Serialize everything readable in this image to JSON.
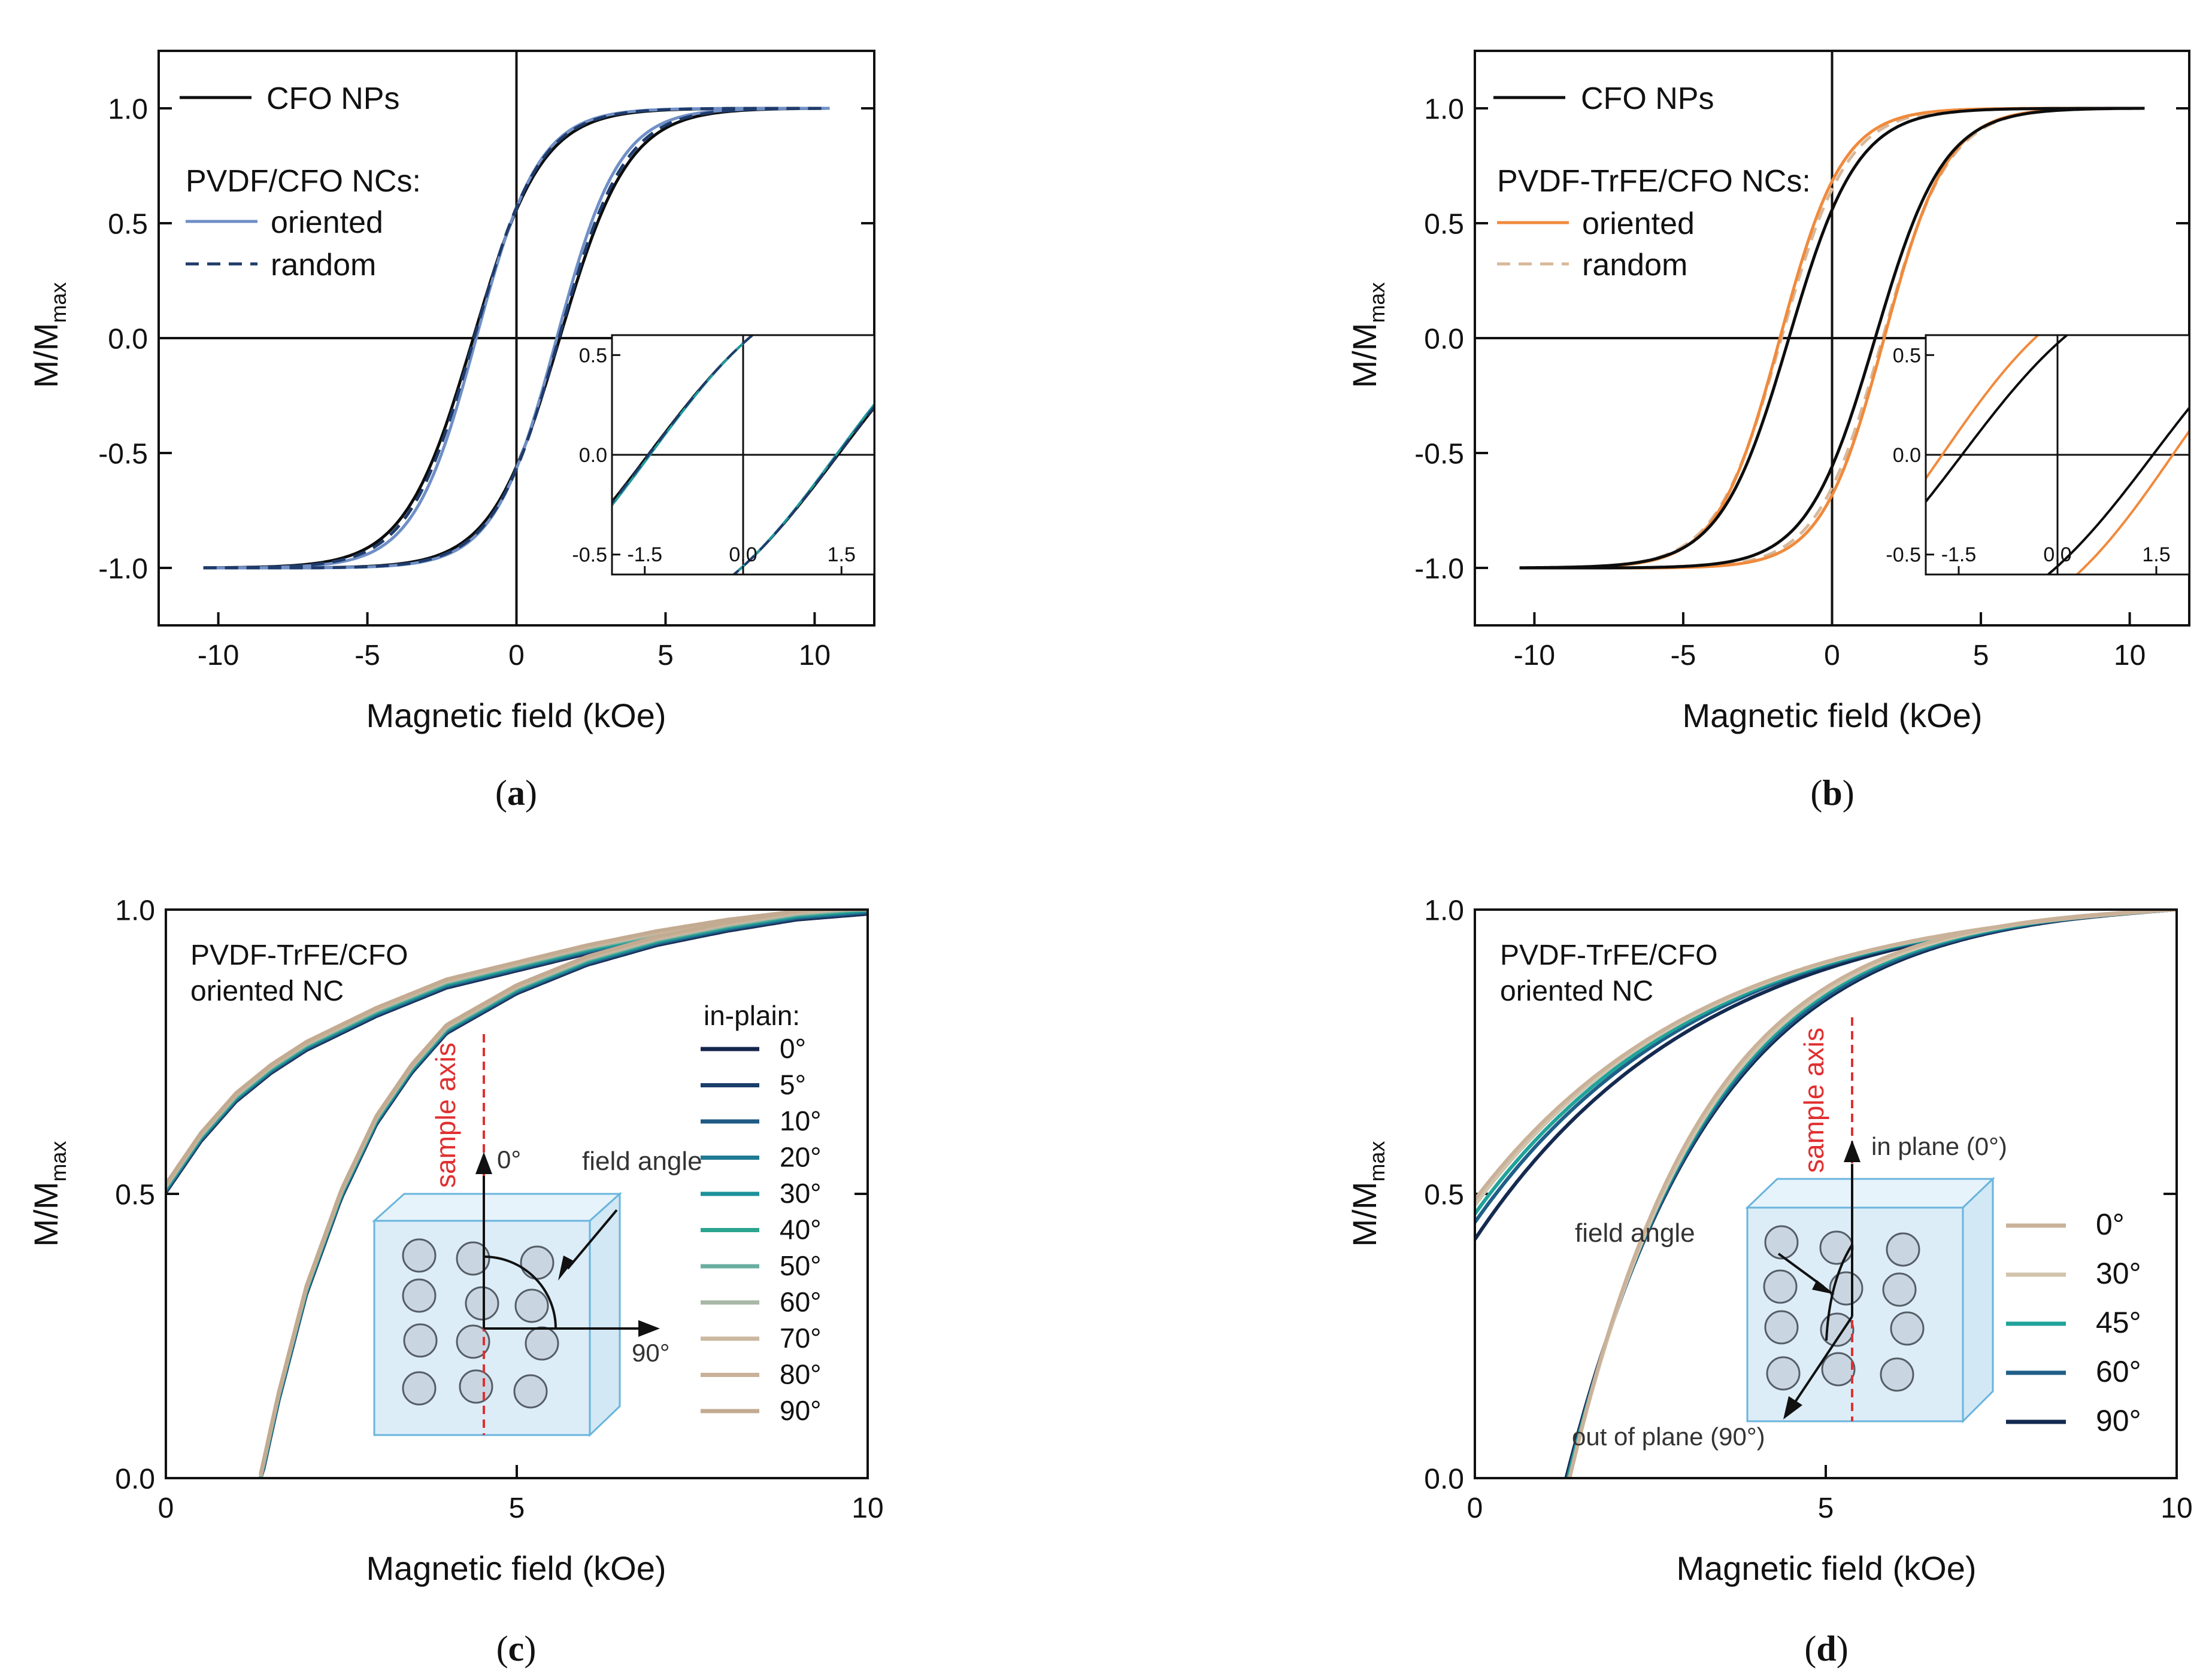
{
  "colors": {
    "black": "#0d0d0d",
    "blue_oriented": "#6f8fc6",
    "navy_random": "#1f3b6b",
    "teal_inset": "#1f9aa0",
    "orange_oriented": "#f08a3c",
    "tan_random": "#d8b89a",
    "sample_axis": "#e03030",
    "cube_fill": "#dcedf8",
    "cube_edge": "#6ab4dd",
    "particle_fill": "#c9d6e2",
    "particle_edge": "#555d66"
  },
  "chart_data": [
    {
      "id": "a",
      "type": "line",
      "caption": "a",
      "xlabel": "Magnetic field (kOe)",
      "ylabel_main": "M/M",
      "ylabel_sub": "max",
      "xlim": [
        -12,
        12
      ],
      "ylim": [
        -1.25,
        1.25
      ],
      "xticks": [
        -10,
        -5,
        0,
        5,
        10
      ],
      "xtick_labels": [
        "-10",
        "-5",
        "0",
        "5",
        "10"
      ],
      "yticks": [
        -1.0,
        -0.5,
        0.0,
        0.5,
        1.0
      ],
      "ytick_labels": [
        "-1.0",
        "-0.5",
        "0.0",
        "0.5",
        "1.0"
      ],
      "legend_heading": "PVDF/CFO NCs:",
      "legend": [
        {
          "label": "CFO NPs",
          "color": "#0d0d0d",
          "dash": ""
        },
        {
          "label": "oriented",
          "color": "#6f8fc6",
          "dash": ""
        },
        {
          "label": "random",
          "color": "#1f3b6b",
          "dash": "22 14"
        }
      ],
      "hysteresis": [
        {
          "name": "CFO NPs",
          "color": "#0d0d0d",
          "dash": "",
          "hc": 1.45,
          "width": 2.3,
          "ms_frac": 1.0,
          "xmax": 10.5
        },
        {
          "name": "oriented",
          "color": "#6f8fc6",
          "dash": "",
          "hc": 1.35,
          "width": 2.1,
          "ms_frac": 1.0,
          "xmax": 10.5
        },
        {
          "name": "random",
          "color": "#1f3b6b",
          "dash": "22 14",
          "hc": 1.42,
          "width": 2.2,
          "ms_frac": 1.0,
          "xmax": 10.5
        }
      ],
      "inset": {
        "xlim": [
          -2.0,
          2.0
        ],
        "ylim": [
          -0.6,
          0.6
        ],
        "xticks": [
          -1.5,
          0.0,
          1.5
        ],
        "xtick_labels": [
          "-1.5",
          "0.0",
          "1.5"
        ],
        "yticks": [
          -0.5,
          0.0,
          0.5
        ],
        "ytick_labels": [
          "-0.5",
          "0.0",
          "0.5"
        ],
        "series": [
          {
            "name": "CFO NPs",
            "color": "#0d0d0d",
            "dash": "",
            "hc": 1.45,
            "width": 2.3
          },
          {
            "name": "oriented",
            "color": "#1f9aa0",
            "dash": "",
            "hc": 1.42,
            "width": 2.25
          },
          {
            "name": "random",
            "color": "#1f3b6b",
            "dash": "22 14",
            "hc": 1.44,
            "width": 2.28
          }
        ]
      }
    },
    {
      "id": "b",
      "type": "line",
      "caption": "b",
      "xlabel": "Magnetic field (kOe)",
      "ylabel_main": "M/M",
      "ylabel_sub": "max",
      "xlim": [
        -12,
        12
      ],
      "ylim": [
        -1.25,
        1.25
      ],
      "xticks": [
        -10,
        -5,
        0,
        5,
        10
      ],
      "xtick_labels": [
        "-10",
        "-5",
        "0",
        "5",
        "10"
      ],
      "yticks": [
        -1.0,
        -0.5,
        0.0,
        0.5,
        1.0
      ],
      "ytick_labels": [
        "-1.0",
        "-0.5",
        "0.0",
        "0.5",
        "1.0"
      ],
      "legend_heading": "PVDF-TrFE/CFO NCs:",
      "legend": [
        {
          "label": "CFO NPs",
          "color": "#0d0d0d",
          "dash": ""
        },
        {
          "label": "oriented",
          "color": "#f08a3c",
          "dash": ""
        },
        {
          "label": "random",
          "color": "#d8b89a",
          "dash": "22 14"
        }
      ],
      "hysteresis": [
        {
          "name": "random",
          "color": "#d8b89a",
          "dash": "22 14",
          "hc": 1.7,
          "width": 2.2,
          "ms_frac": 1.0,
          "xmax": 9.5
        },
        {
          "name": "oriented",
          "color": "#f08a3c",
          "dash": "",
          "hc": 1.75,
          "width": 2.1,
          "ms_frac": 1.0,
          "xmax": 9.5
        },
        {
          "name": "CFO NPs",
          "color": "#0d0d0d",
          "dash": "",
          "hc": 1.45,
          "width": 2.3,
          "ms_frac": 1.0,
          "xmax": 10.5
        }
      ],
      "inset": {
        "xlim": [
          -2.0,
          2.0
        ],
        "ylim": [
          -0.6,
          0.6
        ],
        "xticks": [
          -1.5,
          0.0,
          1.5
        ],
        "xtick_labels": [
          "-1.5",
          "0.0",
          "1.5"
        ],
        "yticks": [
          -0.5,
          0.0,
          0.5
        ],
        "ytick_labels": [
          "-0.5",
          "0.0",
          "0.5"
        ],
        "series": [
          {
            "name": "oriented",
            "color": "#f08a3c",
            "dash": "",
            "hc": 1.75,
            "width": 2.1
          },
          {
            "name": "CFO NPs",
            "color": "#0d0d0d",
            "dash": "",
            "hc": 1.45,
            "width": 2.3
          }
        ]
      }
    },
    {
      "id": "c",
      "type": "line",
      "caption": "c",
      "xlabel": "Magnetic field (kOe)",
      "ylabel_main": "M/M",
      "ylabel_sub": "max",
      "xlim": [
        0,
        10
      ],
      "ylim": [
        0.0,
        1.0
      ],
      "xticks": [
        0,
        5,
        10
      ],
      "xtick_labels": [
        "0",
        "5",
        "10"
      ],
      "yticks": [
        0.0,
        0.5,
        1.0
      ],
      "ytick_labels": [
        "0.0",
        "0.5",
        "1.0"
      ],
      "annotation_lines": [
        "PVDF-TrFE/CFO",
        "oriented NC"
      ],
      "legend_heading": "in-plain:",
      "legend": [
        {
          "label": "0°",
          "color": "#14264d"
        },
        {
          "label": "5°",
          "color": "#1b3f6b"
        },
        {
          "label": "10°",
          "color": "#205a85"
        },
        {
          "label": "20°",
          "color": "#1f7a92"
        },
        {
          "label": "30°",
          "color": "#1e9199"
        },
        {
          "label": "40°",
          "color": "#2aa58f"
        },
        {
          "label": "50°",
          "color": "#6aaea0"
        },
        {
          "label": "60°",
          "color": "#a9b7a7"
        },
        {
          "label": "70°",
          "color": "#cbb8a0"
        },
        {
          "label": "80°",
          "color": "#c9b299"
        },
        {
          "label": "90°",
          "color": "#c3ab92"
        }
      ],
      "branches": [
        {
          "name": "upper",
          "x": [
            0.0,
            0.5,
            1.0,
            1.5,
            2.0,
            3.0,
            4.0,
            5.0,
            6.0,
            7.0,
            8.0,
            9.0,
            10.0
          ],
          "y": [
            0.51,
            0.6,
            0.67,
            0.72,
            0.76,
            0.82,
            0.87,
            0.9,
            0.93,
            0.955,
            0.975,
            0.99,
            1.0
          ]
        },
        {
          "name": "lower",
          "x": [
            1.35,
            1.6,
            2.0,
            2.5,
            3.0,
            3.5,
            4.0,
            5.0,
            6.0,
            7.0,
            8.0,
            9.0,
            10.0
          ],
          "y": [
            0.0,
            0.14,
            0.33,
            0.5,
            0.63,
            0.72,
            0.79,
            0.86,
            0.91,
            0.945,
            0.97,
            0.99,
            1.0
          ]
        }
      ],
      "schematic": {
        "axis_label": "sample axis",
        "angle_top": "0°",
        "angle_right": "90°",
        "angle_label": "field angle"
      }
    },
    {
      "id": "d",
      "type": "line",
      "caption": "d",
      "xlabel": "Magnetic field (kOe)",
      "ylabel_main": "M/M",
      "ylabel_sub": "max",
      "xlim": [
        0,
        10
      ],
      "ylim": [
        0.0,
        1.0
      ],
      "xticks": [
        0,
        5,
        10
      ],
      "xtick_labels": [
        "0",
        "5",
        "10"
      ],
      "yticks": [
        0.0,
        0.5,
        1.0
      ],
      "ytick_labels": [
        "0.0",
        "0.5",
        "1.0"
      ],
      "annotation_lines": [
        "PVDF-TrFE/CFO",
        "oriented NC"
      ],
      "legend": [
        {
          "label": "0°",
          "color": "#c9b299",
          "upper_y0": 0.49,
          "lower_x0": 1.35
        },
        {
          "label": "30°",
          "color": "#d2c3ad",
          "upper_y0": 0.48,
          "lower_x0": 1.35
        },
        {
          "label": "45°",
          "color": "#1fa39a",
          "upper_y0": 0.465,
          "lower_x0": 1.33
        },
        {
          "label": "60°",
          "color": "#1f5f88",
          "upper_y0": 0.45,
          "lower_x0": 1.32
        },
        {
          "label": "90°",
          "color": "#142a50",
          "upper_y0": 0.42,
          "lower_x0": 1.3
        }
      ],
      "schematic": {
        "axis_label": "sample axis",
        "top_label": "in plane (0°)",
        "bottom_label": "out of plane (90°)",
        "angle_label": "field angle"
      }
    }
  ]
}
